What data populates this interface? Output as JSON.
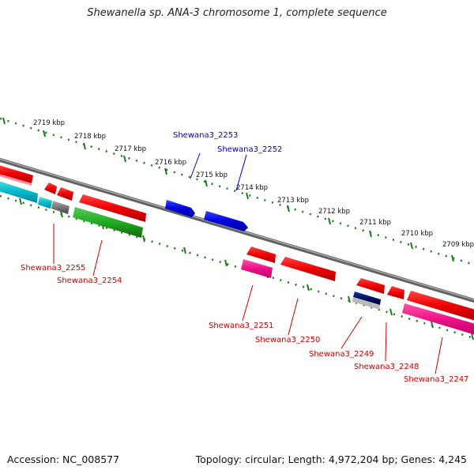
{
  "title": "Shewanella sp. ANA-3 chromosome 1, complete sequence",
  "footer": {
    "accession": "Accession: NC_008577",
    "summary": "Topology: circular; Length: 4,972,204 bp; Genes: 4,245"
  },
  "ruler": {
    "ticks": [
      "2719 kbp",
      "2718 kbp",
      "2717 kbp",
      "2716 kbp",
      "2715 kbp",
      "2714 kbp",
      "2713 kbp",
      "2712 kbp",
      "2711 kbp",
      "2710 kbp",
      "2709 kbp"
    ],
    "color": "#1e7b1e"
  },
  "genes": [
    {
      "label": "Shewana3_2253",
      "color": "#0000cc"
    },
    {
      "label": "Shewana3_2252",
      "color": "#0000cc"
    },
    {
      "label": "Shewana3_2255",
      "color": "#cc0000"
    },
    {
      "label": "Shewana3_2254",
      "color": "#cc0000"
    },
    {
      "label": "Shewana3_2251",
      "color": "#cc0000"
    },
    {
      "label": "Shewana3_2250",
      "color": "#cc0000"
    },
    {
      "label": "Shewana3_2249",
      "color": "#cc0000"
    },
    {
      "label": "Shewana3_2248",
      "color": "#cc0000"
    },
    {
      "label": "Shewana3_2247",
      "color": "#cc0000"
    }
  ],
  "colors": {
    "backbone": "#808080",
    "cds_forward": "#ee0000",
    "cds_reverse": "#ee0000",
    "blue_feature": "#0000dd",
    "pink_feature": "#ee1188",
    "green_feature": "#22aa22",
    "cyan_feature": "#00bbcc",
    "gray_feature": "#777777",
    "navy_feature": "#001166"
  }
}
